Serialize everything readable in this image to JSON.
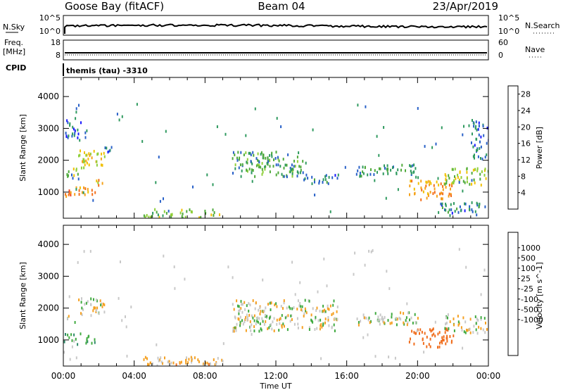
{
  "header": {
    "station": "Goose Bay (fitACF)",
    "beam": "Beam 04",
    "date": "23/Apr/2019",
    "program": "themis (tau) -3310"
  },
  "strips": {
    "nsky_label": "N.Sky",
    "nsky_ticks": [
      "10^5",
      "10^0"
    ],
    "nsearch_label": "N.Search",
    "freq_label": "Freq.",
    "freq_unit": "[MHz]",
    "freq_ticks": [
      "18",
      "8"
    ],
    "nave_label": "Nave",
    "nave_ticks": [
      "60",
      "0"
    ],
    "cpid_label": "CPID"
  },
  "chart_data": [
    {
      "type": "heatmap",
      "title": "Power",
      "xlabel": "Time UT",
      "ylabel": "Slant Range [km]",
      "x_ticks": [
        "00:00",
        "04:00",
        "08:00",
        "12:00",
        "16:00",
        "20:00",
        "00:00"
      ],
      "xlim_hours": [
        0,
        24
      ],
      "y_ticks": [
        "1000",
        "2000",
        "3000",
        "4000"
      ],
      "ylim_km": [
        180,
        4600
      ],
      "colorbar": {
        "label": "Power [dB]",
        "ticks": [
          "4",
          "8",
          "12",
          "16",
          "20",
          "24",
          "28"
        ],
        "range": [
          0,
          30
        ],
        "colors": [
          "#1a1aff",
          "#2860c8",
          "#2f9a5f",
          "#4faa3c",
          "#8fcf3a",
          "#f0c000",
          "#f5a21a",
          "#f36f1a",
          "#f2421a",
          "#e61414"
        ]
      },
      "regions": [
        {
          "t": [
            0.0,
            0.6
          ],
          "r": [
            900,
            1100
          ],
          "v": 22
        },
        {
          "t": [
            0.6,
            1.8
          ],
          "r": [
            950,
            1200
          ],
          "v": 20
        },
        {
          "t": [
            0.0,
            0.8
          ],
          "r": [
            1500,
            1800
          ],
          "v": 13
        },
        {
          "t": [
            0.8,
            2.3
          ],
          "r": [
            1800,
            2350
          ],
          "v": 16
        },
        {
          "t": [
            2.3,
            3.0
          ],
          "r": [
            2300,
            2450
          ],
          "v": 6
        },
        {
          "t": [
            1.7,
            2.3
          ],
          "r": [
            1250,
            1450
          ],
          "v": 18
        },
        {
          "t": [
            0.1,
            1.3
          ],
          "r": [
            2700,
            3300
          ],
          "v": 5
        },
        {
          "t": [
            9.5,
            13.5
          ],
          "r": [
            1500,
            2300
          ],
          "v": 9
        },
        {
          "t": [
            13.5,
            15.5
          ],
          "r": [
            1300,
            1600
          ],
          "v": 6
        },
        {
          "t": [
            16.5,
            20.0
          ],
          "r": [
            1500,
            1900
          ],
          "v": 8
        },
        {
          "t": [
            19.5,
            22.0
          ],
          "r": [
            800,
            1400
          ],
          "v": 20
        },
        {
          "t": [
            21.5,
            24.0
          ],
          "r": [
            1250,
            1800
          ],
          "v": 14
        },
        {
          "t": [
            23.0,
            24.0
          ],
          "r": [
            2000,
            3300
          ],
          "v": 5
        },
        {
          "t": [
            4.5,
            9.0
          ],
          "r": [
            230,
            500
          ],
          "v": 12
        },
        {
          "t": [
            21.0,
            23.5
          ],
          "r": [
            300,
            700
          ],
          "v": 6
        }
      ]
    },
    {
      "type": "heatmap",
      "title": "Velocity",
      "xlabel": "Time UT",
      "ylabel": "Slant Range [km]",
      "x_ticks": [
        "00:00",
        "04:00",
        "08:00",
        "12:00",
        "16:00",
        "20:00",
        "00:00"
      ],
      "xlim_hours": [
        0,
        24
      ],
      "y_ticks": [
        "1000",
        "2000",
        "3000",
        "4000"
      ],
      "ylim_km": [
        180,
        4600
      ],
      "colorbar": {
        "label": "Velocity [m s^-1]",
        "ticks": [
          "1000",
          "500",
          "100",
          "25",
          "-25",
          "-100",
          "-500",
          "-1000"
        ],
        "colors": [
          "#2040b4",
          "#2f66b0",
          "#2f8a6a",
          "#40aa40",
          "#7fd23a",
          "#c8c8c8",
          "#c8c8c8",
          "#f6d22a",
          "#f5a021",
          "#f06e1e",
          "#f03a1e",
          "#e11414"
        ]
      },
      "regions": [
        {
          "t": [
            0.0,
            1.8
          ],
          "r": [
            900,
            1250
          ],
          "v": 100
        },
        {
          "t": [
            0.8,
            2.3
          ],
          "r": [
            1800,
            2350
          ],
          "v": 0
        },
        {
          "t": [
            0.0,
            0.8
          ],
          "r": [
            1500,
            1800
          ],
          "v": 0
        },
        {
          "t": [
            9.5,
            15.5
          ],
          "r": [
            1300,
            2300
          ],
          "v": 0
        },
        {
          "t": [
            16.5,
            20.0
          ],
          "r": [
            1500,
            1900
          ],
          "v": 0
        },
        {
          "t": [
            19.5,
            22.0
          ],
          "r": [
            800,
            1400
          ],
          "v": -200
        },
        {
          "t": [
            21.5,
            24.0
          ],
          "r": [
            1250,
            1800
          ],
          "v": 0
        },
        {
          "t": [
            4.5,
            9.0
          ],
          "r": [
            230,
            500
          ],
          "v": -50
        }
      ]
    }
  ]
}
